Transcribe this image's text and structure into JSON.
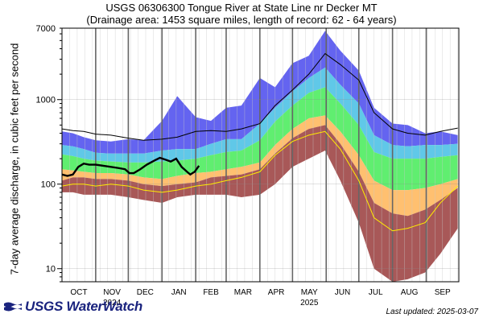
{
  "header": {
    "title": "USGS 06306300 Tongue River at State Line nr Decker MT",
    "subtitle": "(Drainage area: 1453 square miles, length of record: 62 - 64 years)"
  },
  "footer": {
    "logo_text": "USGS WaterWatch",
    "updated": "Last updated: 2025-03-07"
  },
  "colors": {
    "max_band": "#6464f0",
    "p90_band": "#60c8e8",
    "p75_band": "#60ee70",
    "p25_band": "#ffc070",
    "p10_band": "#a85858",
    "current": "#000000",
    "mean": "#000000",
    "minimum": "#ffee00",
    "month_line": "#666666",
    "week_line": "#c8c8c8"
  },
  "chart_data": {
    "type": "area",
    "ylabel": "7-day average discharge, in cubic feet per second",
    "y_scale": "log",
    "ylim": [
      7,
      7000
    ],
    "y_ticks": [
      10,
      100,
      1000,
      7000
    ],
    "y_tick_labels": [
      "10",
      "100",
      "1000",
      "7000"
    ],
    "x_month_labels": [
      "OCT",
      "NOV",
      "DEC",
      "JAN",
      "FEB",
      "MAR",
      "APR",
      "MAY",
      "JUN",
      "JUL",
      "AUG",
      "SEP"
    ],
    "x_year_labels": [
      {
        "month": "NOV",
        "label": "2024"
      },
      {
        "month": "MAY",
        "label": "2025"
      }
    ],
    "day_of_year_x": [
      0,
      10,
      20,
      31,
      45,
      61,
      75,
      92,
      106,
      123,
      137,
      151,
      165,
      182,
      196,
      212,
      227,
      242,
      256,
      273,
      287,
      304,
      318,
      334,
      348,
      364
    ],
    "series": [
      {
        "key": "max",
        "values": [
          420,
          400,
          360,
          330,
          320,
          340,
          330,
          560,
          1100,
          620,
          560,
          800,
          850,
          1800,
          1400,
          2700,
          3300,
          6500,
          3800,
          2200,
          800,
          520,
          500,
          400,
          420,
          380
        ]
      },
      {
        "key": "p90",
        "values": [
          290,
          280,
          260,
          235,
          230,
          230,
          230,
          250,
          260,
          260,
          300,
          340,
          340,
          520,
          800,
          1250,
          1800,
          2400,
          1500,
          900,
          380,
          290,
          280,
          290,
          290,
          300
        ]
      },
      {
        "key": "p75",
        "values": [
          225,
          215,
          200,
          190,
          185,
          180,
          180,
          185,
          190,
          200,
          220,
          240,
          250,
          330,
          550,
          850,
          1200,
          1400,
          900,
          500,
          240,
          200,
          200,
          200,
          210,
          220
        ]
      },
      {
        "key": "p25",
        "values": [
          150,
          145,
          140,
          135,
          135,
          130,
          120,
          115,
          125,
          135,
          140,
          150,
          160,
          180,
          290,
          450,
          600,
          650,
          420,
          220,
          110,
          85,
          85,
          90,
          100,
          115
        ]
      },
      {
        "key": "p10",
        "values": [
          110,
          120,
          120,
          115,
          115,
          110,
          100,
          95,
          100,
          105,
          120,
          125,
          130,
          150,
          230,
          350,
          450,
          500,
          300,
          140,
          60,
          45,
          42,
          50,
          65,
          90
        ]
      },
      {
        "key": "min",
        "values": [
          80,
          80,
          75,
          75,
          75,
          70,
          65,
          60,
          70,
          75,
          75,
          75,
          70,
          75,
          100,
          160,
          200,
          250,
          110,
          35,
          10,
          7,
          7.5,
          9,
          15,
          30
        ]
      },
      {
        "key": "mean",
        "values": [
          450,
          430,
          420,
          390,
          380,
          350,
          330,
          340,
          360,
          420,
          430,
          420,
          450,
          520,
          850,
          1300,
          2000,
          3500,
          2600,
          1700,
          700,
          450,
          400,
          380,
          420,
          460
        ]
      },
      {
        "key": "minimum",
        "values": [
          95,
          100,
          100,
          95,
          100,
          95,
          85,
          80,
          85,
          95,
          100,
          110,
          120,
          140,
          220,
          320,
          380,
          420,
          260,
          110,
          40,
          28,
          30,
          35,
          60,
          95
        ]
      }
    ],
    "current": {
      "day_of_year_x": [
        0,
        5,
        10,
        15,
        20,
        25,
        31,
        38,
        45,
        52,
        58,
        62,
        66,
        72,
        78,
        85,
        90,
        95,
        100,
        105,
        110,
        115,
        118,
        122,
        126
      ],
      "values": [
        130,
        125,
        130,
        160,
        175,
        170,
        170,
        165,
        160,
        155,
        150,
        135,
        135,
        150,
        170,
        190,
        205,
        195,
        185,
        200,
        160,
        140,
        130,
        140,
        165
      ]
    }
  }
}
